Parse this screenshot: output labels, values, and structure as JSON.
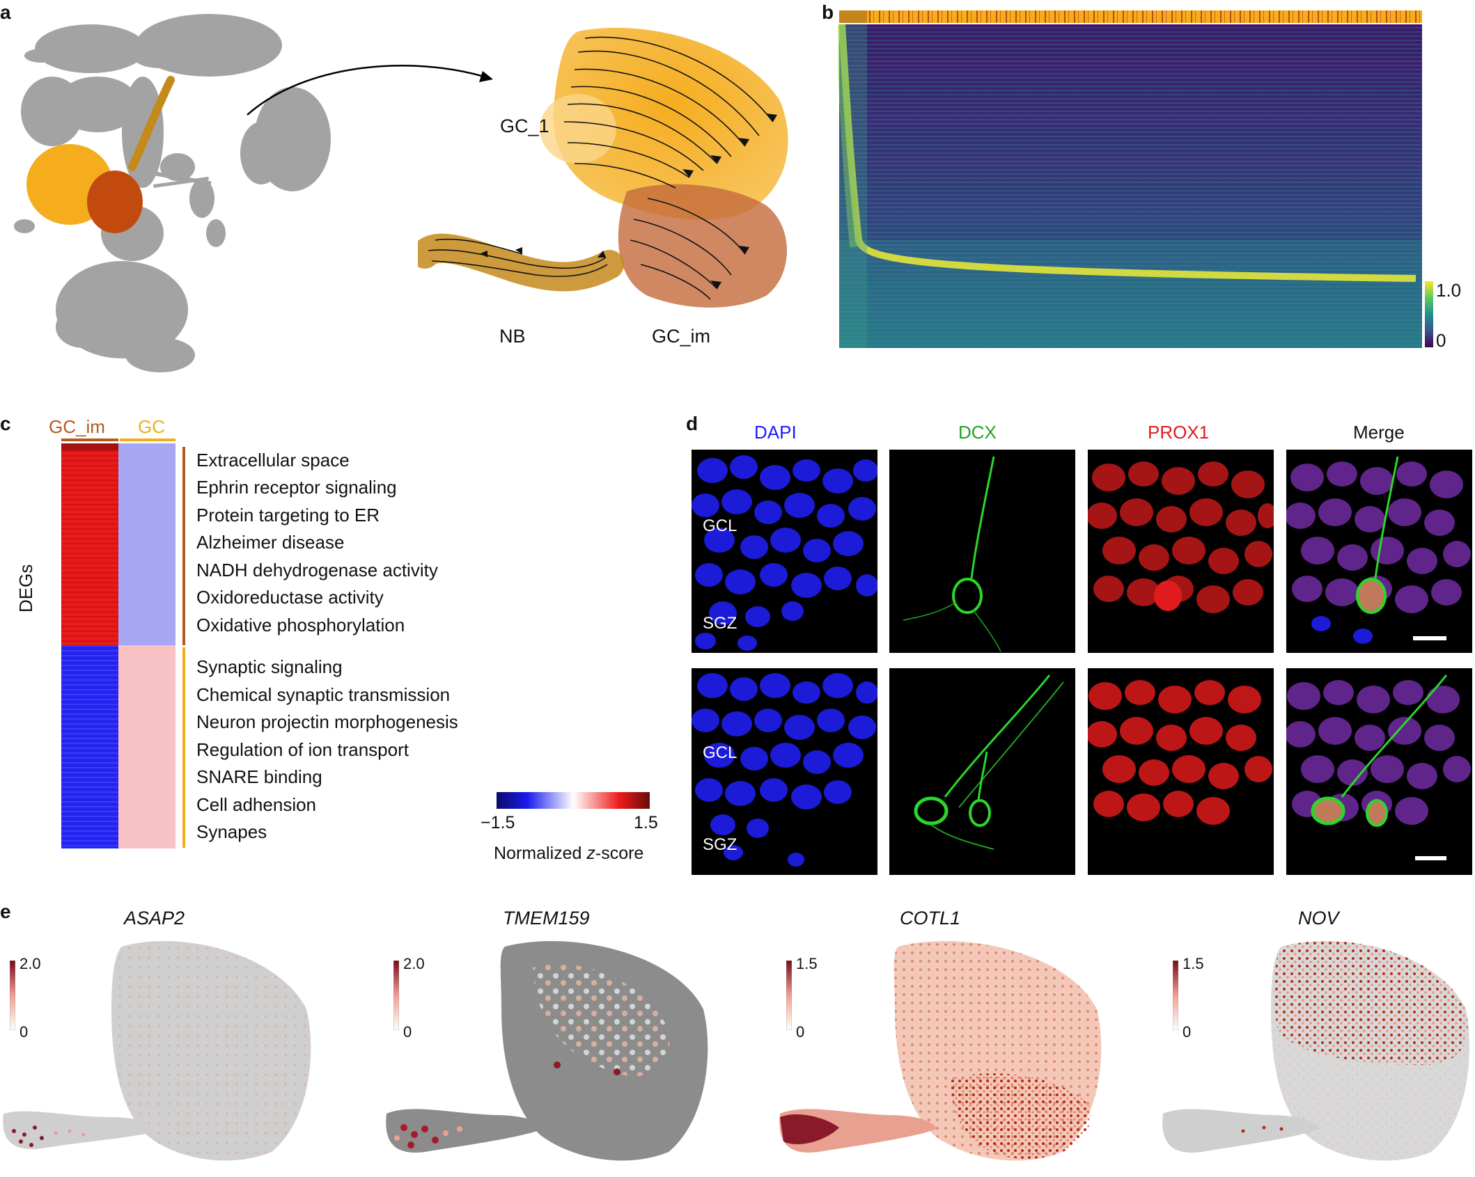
{
  "panels": {
    "a": {
      "label": "a",
      "clusters": {
        "gc1": "GC_1",
        "nb": "NB",
        "gcim": "GC_im"
      },
      "colors": {
        "gray": "#9a9a9a",
        "gc": "#f5ad1e",
        "gcim": "#c24a0f",
        "nb": "#c48a1c"
      }
    },
    "b": {
      "label": "b",
      "colorbar": {
        "max": "1.0",
        "min": "0"
      }
    },
    "c": {
      "label": "c",
      "header": {
        "gcim": "GC_im",
        "gc": "GC"
      },
      "ylabel": "DEGs",
      "up_terms": [
        "Extracellular space",
        "Ephrin receptor signaling",
        "Protein targeting to ER",
        "Alzheimer disease",
        "NADH dehydrogenase activity",
        "Oxidoreductase activity",
        "Oxidative phosphorylation"
      ],
      "down_terms": [
        "Synaptic signaling",
        "Chemical synaptic transmission",
        "Neuron projectin morphogenesis",
        "Regulation of ion transport",
        "SNARE binding",
        "Cell adhension",
        "Synapes"
      ],
      "colorbar": {
        "min": "−1.5",
        "max": "1.5",
        "title_prefix": "Normalized ",
        "title_italic": "z",
        "title_suffix": "-score"
      }
    },
    "d": {
      "label": "d",
      "channels": [
        {
          "name": "DAPI",
          "color": "#1a1aff"
        },
        {
          "name": "DCX",
          "color": "#1ea51e"
        },
        {
          "name": "PROX1",
          "color": "#e01b1b"
        },
        {
          "name": "Merge",
          "color": "#111111"
        }
      ],
      "layer_labels": {
        "gcl": "GCL",
        "sgz": "SGZ"
      }
    },
    "e": {
      "label": "e",
      "genes": [
        {
          "name": "ASAP2",
          "max": "2.0",
          "min": "0"
        },
        {
          "name": "TMEM159",
          "max": "2.0",
          "min": "0"
        },
        {
          "name": "COTL1",
          "max": "1.5",
          "min": "0"
        },
        {
          "name": "NOV",
          "max": "1.5",
          "min": "0"
        }
      ]
    }
  }
}
